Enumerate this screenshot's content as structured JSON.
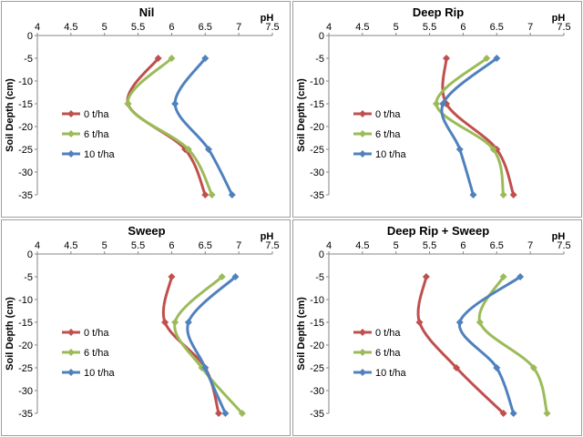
{
  "chart_data": [
    {
      "type": "line",
      "title": "Nil",
      "xlabel": "pH",
      "ylabel": "Soil Depth (cm)",
      "xlim": [
        4,
        7.5
      ],
      "ylim": [
        -35,
        0
      ],
      "xticks": [
        "4",
        "4.5",
        "5",
        "5.5",
        "6",
        "6.5",
        "7",
        "7.5"
      ],
      "yticks": [
        "0",
        "-5",
        "-10",
        "-15",
        "-20",
        "-25",
        "-30",
        "-35"
      ],
      "y": [
        -5,
        -15,
        -25,
        -35
      ],
      "series": [
        {
          "name": "0 t/ha",
          "color": "#c0504d",
          "x": [
            5.8,
            5.35,
            6.2,
            6.5
          ]
        },
        {
          "name": "6 t/ha",
          "color": "#9bbb59",
          "x": [
            6.0,
            5.35,
            6.25,
            6.6
          ]
        },
        {
          "name": "10 t/ha",
          "color": "#4f81bd",
          "x": [
            6.5,
            6.05,
            6.55,
            6.9
          ]
        }
      ],
      "legend": "left"
    },
    {
      "type": "line",
      "title": "Deep Rip",
      "xlabel": "pH",
      "ylabel": "Soil Depth (cm)",
      "xlim": [
        4,
        7.5
      ],
      "ylim": [
        -35,
        0
      ],
      "xticks": [
        "4",
        "4.5",
        "5",
        "5.5",
        "6",
        "6.5",
        "7",
        "7.5"
      ],
      "yticks": [
        "0",
        "-5",
        "-10",
        "-15",
        "-20",
        "-25",
        "-30",
        "-35"
      ],
      "y": [
        -5,
        -15,
        -25,
        -35
      ],
      "series": [
        {
          "name": "0 t/ha",
          "color": "#c0504d",
          "x": [
            5.75,
            5.75,
            6.5,
            6.75
          ]
        },
        {
          "name": "6 t/ha",
          "color": "#9bbb59",
          "x": [
            6.35,
            5.6,
            6.45,
            6.6
          ]
        },
        {
          "name": "10 t/ha",
          "color": "#4f81bd",
          "x": [
            6.5,
            5.7,
            5.95,
            6.15
          ]
        }
      ],
      "legend": "left"
    },
    {
      "type": "line",
      "title": "Sweep",
      "xlabel": "pH",
      "ylabel": "Soil Depth (cm)",
      "xlim": [
        4,
        7.5
      ],
      "ylim": [
        -35,
        0
      ],
      "xticks": [
        "4",
        "4.5",
        "5",
        "5.5",
        "6",
        "6.5",
        "7",
        "7.5"
      ],
      "yticks": [
        "0",
        "-5",
        "-10",
        "-15",
        "-20",
        "-25",
        "-30",
        "-35"
      ],
      "y": [
        -5,
        -15,
        -25,
        -35
      ],
      "series": [
        {
          "name": "0 t/ha",
          "color": "#c0504d",
          "x": [
            6.0,
            5.9,
            6.5,
            6.7
          ]
        },
        {
          "name": "6 t/ha",
          "color": "#9bbb59",
          "x": [
            6.75,
            6.05,
            6.45,
            7.05
          ]
        },
        {
          "name": "10 t/ha",
          "color": "#4f81bd",
          "x": [
            6.95,
            6.25,
            6.5,
            6.8
          ]
        }
      ],
      "legend": "left"
    },
    {
      "type": "line",
      "title": "Deep Rip + Sweep",
      "xlabel": "pH",
      "ylabel": "Soil Depth (cm)",
      "xlim": [
        4,
        7.5
      ],
      "ylim": [
        -35,
        0
      ],
      "xticks": [
        "4",
        "4.5",
        "5",
        "5.5",
        "6",
        "6.5",
        "7",
        "7.5"
      ],
      "yticks": [
        "0",
        "-5",
        "-10",
        "-15",
        "-20",
        "-25",
        "-30",
        "-35"
      ],
      "y": [
        -5,
        -15,
        -25,
        -35
      ],
      "series": [
        {
          "name": "0 t/ha",
          "color": "#c0504d",
          "x": [
            5.45,
            5.35,
            5.9,
            6.6
          ]
        },
        {
          "name": "6 t/ha",
          "color": "#9bbb59",
          "x": [
            6.6,
            6.25,
            7.05,
            7.25
          ]
        },
        {
          "name": "10 t/ha",
          "color": "#4f81bd",
          "x": [
            6.85,
            5.95,
            6.5,
            6.75
          ]
        }
      ],
      "legend": "left"
    }
  ]
}
